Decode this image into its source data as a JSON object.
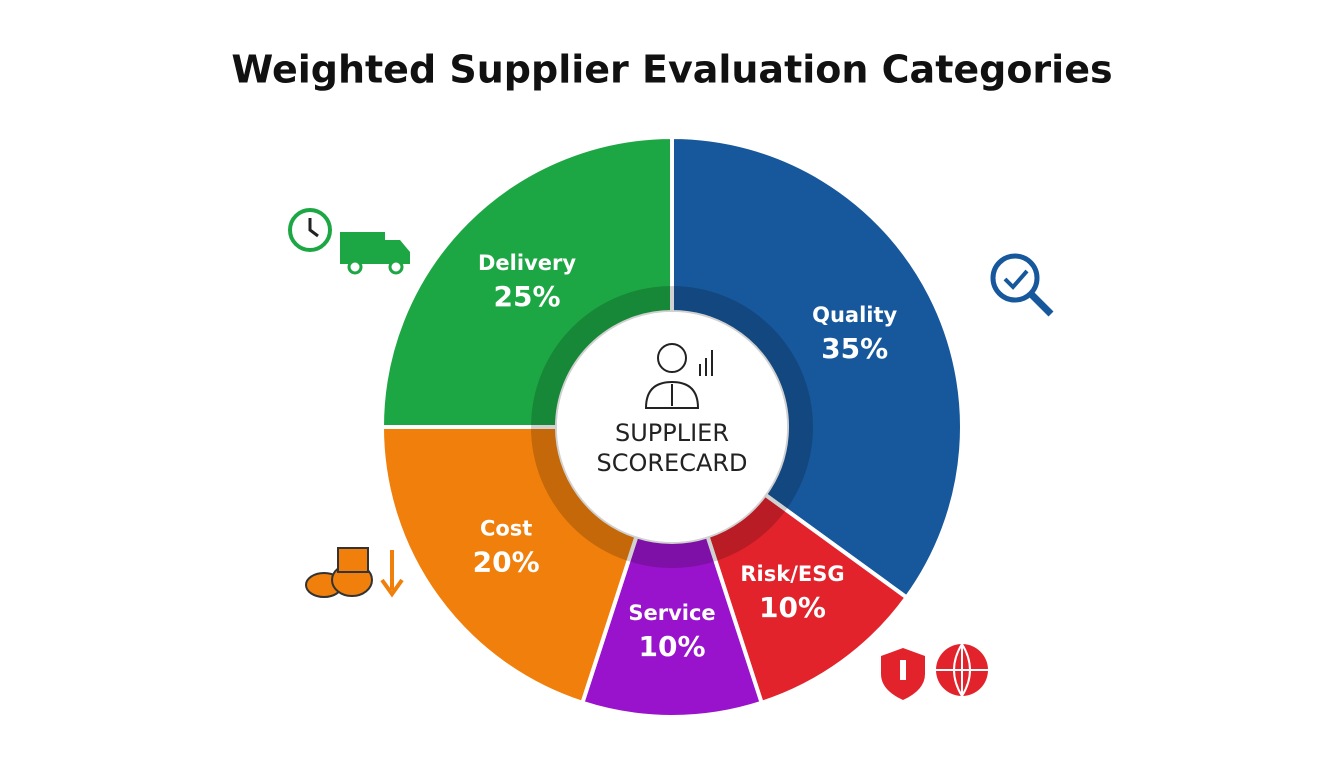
{
  "chart_data": {
    "type": "donut",
    "title": "Weighted Supplier Evaluation Categories",
    "center_label": [
      "SUPPLIER",
      "SCORECARD"
    ],
    "categories": [
      "Quality",
      "Risk/ESG",
      "Service",
      "Cost",
      "Delivery"
    ],
    "values": [
      35,
      10,
      10,
      20,
      25
    ],
    "value_labels": [
      "35%",
      "10%",
      "10%",
      "20%",
      "25%"
    ],
    "colors": [
      "#17589c",
      "#e2232c",
      "#9a13cc",
      "#f07f0b",
      "#1da744"
    ]
  }
}
